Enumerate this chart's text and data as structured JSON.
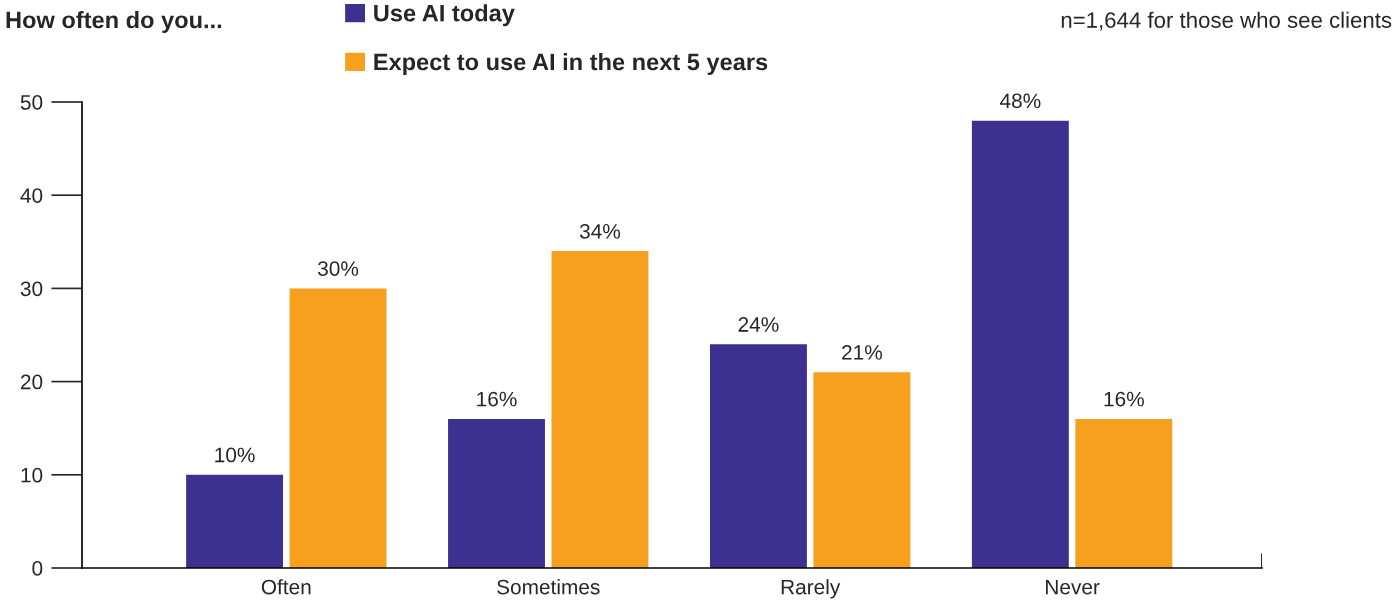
{
  "chart_data": {
    "type": "bar",
    "title": "How often do you...",
    "annotations": [
      "n=1,644 for those who see clients"
    ],
    "categories": [
      "Often",
      "Sometimes",
      "Rarely",
      "Never"
    ],
    "series": [
      {
        "name": "Use AI today",
        "color": "#3d3190",
        "values": [
          10,
          16,
          24,
          48
        ],
        "value_labels": [
          "10%",
          "16%",
          "24%",
          "48%"
        ]
      },
      {
        "name": "Expect to use AI in the next 5 years",
        "color": "#f79f1f",
        "values": [
          30,
          34,
          21,
          16
        ],
        "value_labels": [
          "30%",
          "34%",
          "21%",
          "16%"
        ]
      }
    ],
    "ylim": [
      0,
      50
    ],
    "yticks": [
      0,
      10,
      20,
      30,
      40,
      50
    ],
    "grid": false,
    "legend": "top"
  }
}
